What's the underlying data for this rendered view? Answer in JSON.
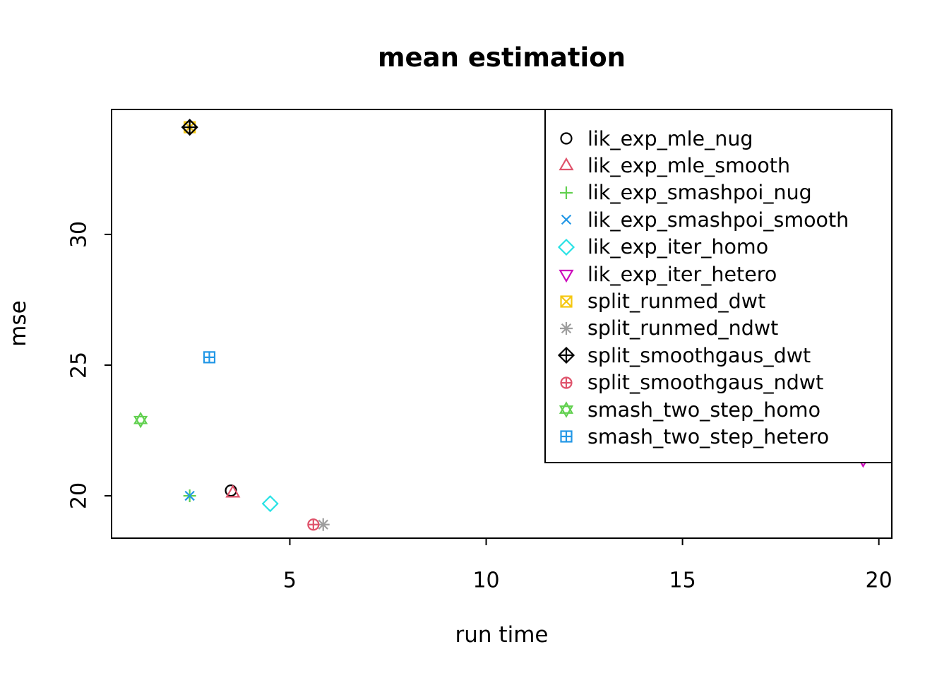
{
  "chart_data": {
    "type": "scatter",
    "title": "mean estimation",
    "xlabel": "run time",
    "ylabel": "mse",
    "xlim": [
      0.46,
      20.33
    ],
    "ylim": [
      18.38,
      34.78
    ],
    "x_ticks": [
      5,
      10,
      15,
      20
    ],
    "y_ticks": [
      20,
      25,
      30
    ],
    "grid": false,
    "legend_position": "top-right-inside",
    "axis_color": "#000000",
    "background_color": "#ffffff",
    "series": [
      {
        "name": "lik_exp_mle_nug",
        "pch": "circle",
        "color": "#000000",
        "points": [
          [
            3.5,
            20.2
          ]
        ]
      },
      {
        "name": "lik_exp_mle_smooth",
        "pch": "triangle-up",
        "color": "#DF536B",
        "points": [
          [
            3.55,
            20.1
          ]
        ]
      },
      {
        "name": "lik_exp_smashpoi_nug",
        "pch": "plus",
        "color": "#61D04F",
        "points": [
          [
            2.45,
            20.0
          ]
        ]
      },
      {
        "name": "lik_exp_smashpoi_smooth",
        "pch": "x",
        "color": "#2297E6",
        "points": [
          [
            2.45,
            20.0
          ]
        ]
      },
      {
        "name": "lik_exp_iter_homo",
        "pch": "diamond",
        "color": "#28E2E5",
        "points": [
          [
            4.5,
            19.7
          ]
        ]
      },
      {
        "name": "lik_exp_iter_hetero",
        "pch": "triangle-down",
        "color": "#CD0BBC",
        "points": [
          [
            19.6,
            21.4
          ]
        ]
      },
      {
        "name": "split_runmed_dwt",
        "pch": "square-x",
        "color": "#F5C710",
        "points": [
          [
            2.45,
            34.1
          ]
        ]
      },
      {
        "name": "split_runmed_ndwt",
        "pch": "asterisk",
        "color": "#9E9E9E",
        "points": [
          [
            5.85,
            18.9
          ]
        ]
      },
      {
        "name": "split_smoothgaus_dwt",
        "pch": "diamond-plus",
        "color": "#000000",
        "points": [
          [
            2.45,
            34.1
          ]
        ]
      },
      {
        "name": "split_smoothgaus_ndwt",
        "pch": "circle-plus",
        "color": "#DF536B",
        "points": [
          [
            5.6,
            18.9
          ]
        ]
      },
      {
        "name": "smash_two_step_homo",
        "pch": "star",
        "color": "#61D04F",
        "points": [
          [
            1.2,
            22.9
          ]
        ]
      },
      {
        "name": "smash_two_step_hetero",
        "pch": "square-plus",
        "color": "#2297E6",
        "points": [
          [
            2.95,
            25.3
          ]
        ]
      }
    ]
  }
}
